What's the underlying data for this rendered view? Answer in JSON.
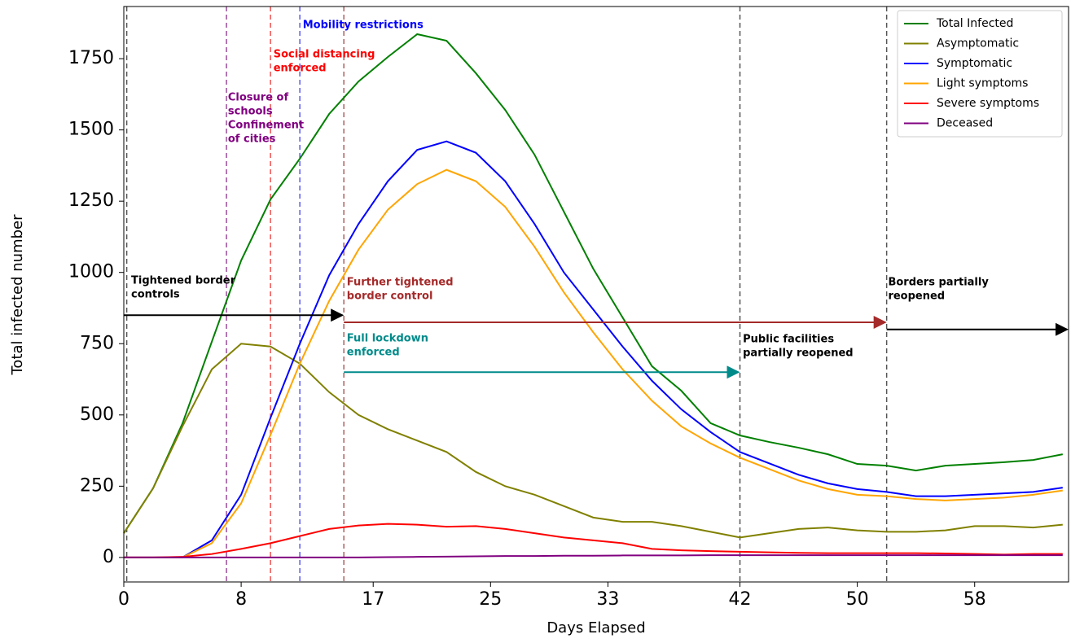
{
  "chart_data": {
    "type": "line",
    "xlabel": "Days Elapsed",
    "ylabel": "Total infected number",
    "x": [
      0,
      2,
      4,
      6,
      8,
      10,
      12,
      14,
      16,
      18,
      20,
      22,
      24,
      26,
      28,
      30,
      32,
      34,
      36,
      38,
      40,
      42,
      44,
      46,
      48,
      50,
      52,
      54,
      56,
      58,
      60,
      62,
      64
    ],
    "series": [
      {
        "name": "Total Infected",
        "color": "#008000",
        "values": [
          85,
          243,
          470,
          757,
          1042,
          1256,
          1399,
          1556,
          1670,
          1756,
          1836,
          1813,
          1699,
          1570,
          1413,
          1213,
          1013,
          842,
          671,
          585,
          471,
          428,
          405,
          385,
          362,
          328,
          322,
          305,
          322,
          328,
          334,
          342,
          362
        ]
      },
      {
        "name": "Asymptomatic",
        "color": "#808000",
        "values": [
          85,
          243,
          460,
          660,
          750,
          740,
          680,
          580,
          500,
          450,
          410,
          370,
          300,
          250,
          220,
          180,
          140,
          125,
          125,
          110,
          90,
          70,
          85,
          100,
          105,
          95,
          90,
          90,
          95,
          110,
          110,
          105,
          115
        ]
      },
      {
        "name": "Symptomatic",
        "color": "#0000ff",
        "values": [
          0,
          0,
          0,
          60,
          220,
          490,
          750,
          990,
          1170,
          1320,
          1430,
          1460,
          1420,
          1320,
          1170,
          1000,
          870,
          740,
          620,
          520,
          440,
          370,
          330,
          290,
          260,
          240,
          230,
          215,
          215,
          220,
          225,
          230,
          245
        ]
      },
      {
        "name": "Light symptoms",
        "color": "#ffa500",
        "values": [
          0,
          0,
          0,
          50,
          190,
          430,
          680,
          900,
          1080,
          1220,
          1310,
          1360,
          1320,
          1230,
          1090,
          930,
          790,
          660,
          550,
          460,
          400,
          350,
          310,
          270,
          240,
          220,
          215,
          205,
          200,
          205,
          210,
          220,
          235
        ]
      },
      {
        "name": "Severe symptoms",
        "color": "#ff0000",
        "values": [
          0,
          0,
          2,
          12,
          30,
          50,
          75,
          100,
          112,
          118,
          115,
          108,
          110,
          100,
          85,
          70,
          60,
          50,
          30,
          25,
          22,
          20,
          18,
          16,
          15,
          15,
          15,
          15,
          14,
          12,
          10,
          12,
          12
        ]
      },
      {
        "name": "Deceased",
        "color": "#800080",
        "values": [
          0,
          0,
          0,
          0,
          0,
          0,
          0,
          0,
          0,
          1,
          2,
          3,
          4,
          5,
          5,
          6,
          6,
          7,
          7,
          7,
          8,
          8,
          8,
          8,
          8,
          8,
          8,
          8,
          8,
          8,
          8,
          8,
          8
        ]
      }
    ],
    "xlim": [
      0,
      64.4
    ],
    "ylim": [
      -86,
      1933
    ],
    "xticks": [
      0,
      8,
      17,
      25,
      33,
      42,
      50,
      58
    ],
    "yticks": [
      0,
      250,
      500,
      750,
      1000,
      1250,
      1500,
      1750
    ],
    "legend": "upper right",
    "events": [
      {
        "x": 0.2,
        "color": "#555555"
      },
      {
        "x": 7,
        "color": "#9b4d9b"
      },
      {
        "x": 10,
        "color": "#f05050"
      },
      {
        "x": 12,
        "color": "#5a5af0"
      },
      {
        "x": 15,
        "color": "#b06060"
      },
      {
        "x": 42,
        "color": "#555555"
      },
      {
        "x": 52,
        "color": "#555555"
      }
    ],
    "arrows": [
      {
        "from": 0,
        "to": 15,
        "y": 850,
        "color": "#000000"
      },
      {
        "from": 15,
        "to": 52,
        "y": 825,
        "color": "#a52a2a"
      },
      {
        "from": 15,
        "to": 42,
        "y": 650,
        "color": "#008b8b"
      },
      {
        "from": 52,
        "to": 64.4,
        "y": 800,
        "color": "#000000"
      }
    ],
    "annotations": [
      {
        "x": 0.5,
        "y": 970,
        "color": "#000000",
        "lines": [
          "Tightened border",
          "controls"
        ]
      },
      {
        "x": 12.2,
        "y": 1867,
        "color": "#0000ff",
        "lines": [
          "Mobility restrictions"
        ]
      },
      {
        "x": 10.2,
        "y": 1764,
        "color": "#ff0000",
        "lines": [
          "Social distancing",
          "enforced"
        ]
      },
      {
        "x": 7.1,
        "y": 1613,
        "color": "#800080",
        "lines": [
          "Closure of",
          "schools",
          "Confinement",
          "of cities"
        ]
      },
      {
        "x": 15.2,
        "y": 965,
        "color": "#a52a2a",
        "lines": [
          "Further tightened",
          "border control"
        ]
      },
      {
        "x": 15.2,
        "y": 768,
        "color": "#008b8b",
        "lines": [
          "Full lockdown",
          "enforced"
        ]
      },
      {
        "x": 42.2,
        "y": 765,
        "color": "#000000",
        "lines": [
          "Public facilities",
          "partially reopened"
        ]
      },
      {
        "x": 52.1,
        "y": 965,
        "color": "#000000",
        "lines": [
          "Borders partially",
          "reopened"
        ]
      }
    ]
  }
}
